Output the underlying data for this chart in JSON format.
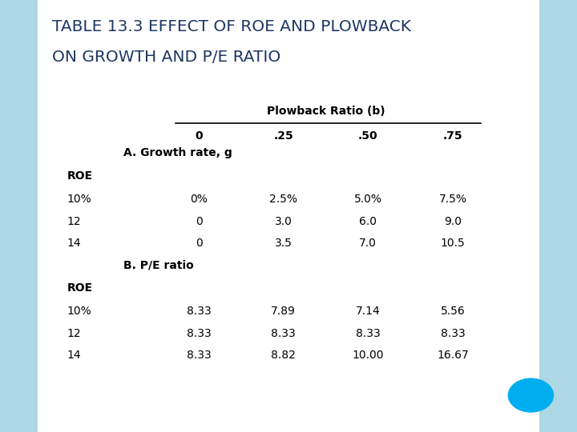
{
  "title_line1": "TABLE 13.3 EFFECT OF ROE AND PLOWBACK",
  "title_line2": "ON GROWTH AND P/E RATIO",
  "title_color": "#1F3864",
  "background_color": "#FFFFFF",
  "table_bg_color": "#C8C8C8",
  "slide_border_color": "#ADD8E6",
  "circle_color": "#00AEEF",
  "plowback_header": "Plowback Ratio (b)",
  "col_headers": [
    "0",
    ".25",
    ".50",
    ".75"
  ],
  "section_a_label": "A. Growth rate, g",
  "section_b_label": "B. P/E ratio",
  "roe_label": "ROE",
  "row_labels_a": [
    "10%",
    "12",
    "14"
  ],
  "row_labels_b": [
    "10%",
    "12",
    "14"
  ],
  "data_a": [
    [
      "0%",
      "2.5%",
      "5.0%",
      "7.5%"
    ],
    [
      "0",
      "3.0",
      "6.0",
      "9.0"
    ],
    [
      "0",
      "3.5",
      "7.0",
      "10.5"
    ]
  ],
  "data_b": [
    [
      "8.33",
      "7.89",
      "7.14",
      "5.56"
    ],
    [
      "8.33",
      "8.33",
      "8.33",
      "8.33"
    ],
    [
      "8.33",
      "8.82",
      "10.00",
      "16.67"
    ]
  ]
}
